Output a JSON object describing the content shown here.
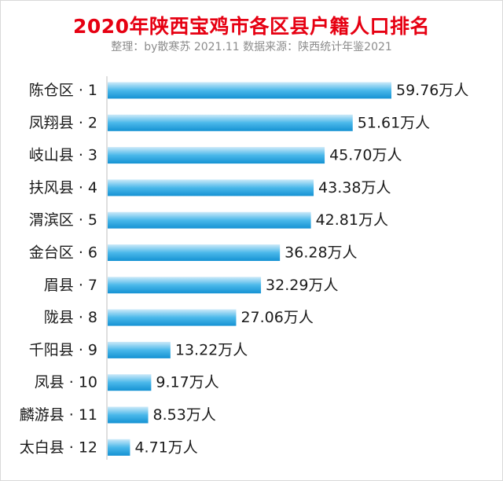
{
  "header": {
    "title": "2020年陕西宝鸡市各区县户籍人口排名",
    "subtitle": "整理：by散寒苏  2021.11  数据来源：陕西统计年鉴2021"
  },
  "colors": {
    "title": "#e60012",
    "bar_light": "#cdeaf9",
    "bar_mid": "#4ab8ea",
    "bar_dark": "#1592d3"
  },
  "chart_data": {
    "type": "bar",
    "orientation": "horizontal",
    "categories": [
      "陈仓区 · 1",
      "凤翔县 · 2",
      "岐山县 · 3",
      "扶风县 · 4",
      "渭滨区 · 5",
      "金台区 · 6",
      "眉县 · 7",
      "陇县 · 8",
      "千阳县 · 9",
      "凤县 · 10",
      "麟游县 · 11",
      "太白县 · 12"
    ],
    "values": [
      59.76,
      51.61,
      45.7,
      43.38,
      42.81,
      36.28,
      32.29,
      27.06,
      13.22,
      9.17,
      8.53,
      4.71
    ],
    "value_labels": [
      "59.76万人",
      "51.61万人",
      "45.70万人",
      "43.38万人",
      "42.81万人",
      "36.28万人",
      "32.29万人",
      "27.06万人",
      "13.22万人",
      "9.17万人",
      "8.53万人",
      "4.71万人"
    ],
    "xlim": [
      0,
      59.76
    ],
    "grid": false,
    "legend": "none"
  }
}
